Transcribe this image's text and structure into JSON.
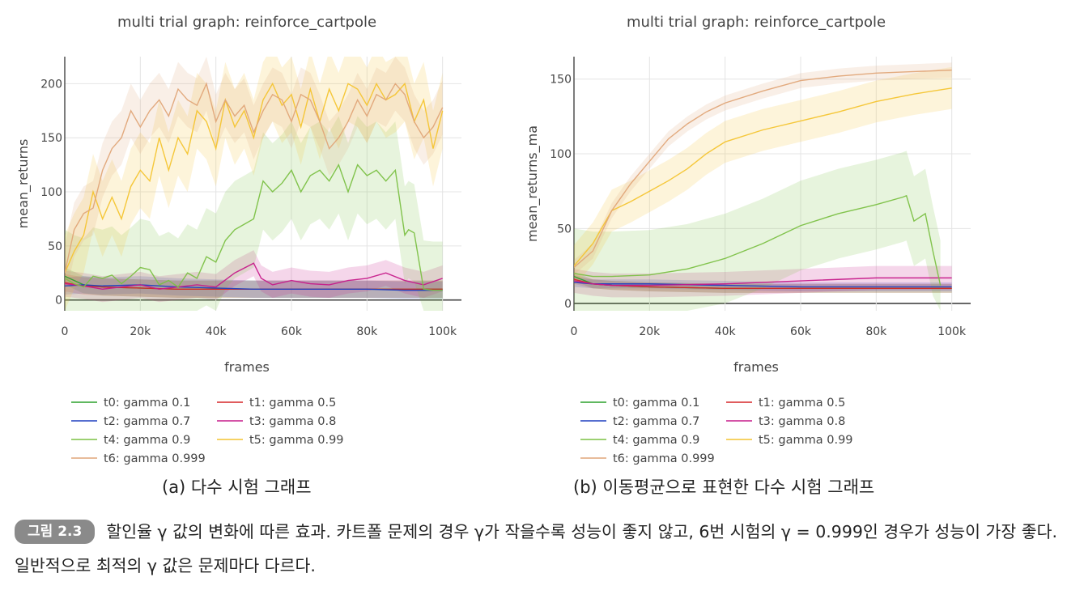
{
  "chart_data": [
    {
      "type": "line",
      "title": "multi trial graph: reinforce_cartpole",
      "xlabel": "frames",
      "ylabel": "mean_returns",
      "xlim": [
        0,
        105000
      ],
      "ylim": [
        -10,
        225
      ],
      "xticks": [
        0,
        20000,
        40000,
        60000,
        80000,
        100000
      ],
      "xtick_labels": [
        "0",
        "20k",
        "40k",
        "60k",
        "80k",
        "100k"
      ],
      "yticks": [
        0,
        50,
        100,
        150,
        200
      ],
      "ytick_labels": [
        "0",
        "50",
        "100",
        "150",
        "200"
      ],
      "grid": true,
      "legend_position": "bottom",
      "series": [
        {
          "name": "t0: gamma 0.1",
          "color": "#2ca02c",
          "band": 8,
          "x": [
            0,
            5000,
            10000,
            20000,
            30000,
            40000,
            50000,
            60000,
            70000,
            80000,
            90000,
            100000
          ],
          "y": [
            22,
            14,
            12,
            11,
            10,
            10,
            10,
            10,
            10,
            10,
            10,
            10
          ]
        },
        {
          "name": "t1: gamma 0.5",
          "color": "#d62728",
          "band": 8,
          "x": [
            0,
            5000,
            10000,
            20000,
            30000,
            40000,
            50000,
            60000,
            70000,
            80000,
            90000,
            100000
          ],
          "y": [
            16,
            13,
            12,
            11,
            10,
            10,
            10,
            10,
            10,
            10,
            10,
            10
          ]
        },
        {
          "name": "t2: gamma 0.7",
          "color": "#1f3fbf",
          "band": 8,
          "x": [
            0,
            5000,
            10000,
            20000,
            30000,
            40000,
            50000,
            60000,
            70000,
            80000,
            90000,
            100000
          ],
          "y": [
            13,
            14,
            13,
            14,
            12,
            11,
            10,
            10,
            10,
            10,
            9,
            9
          ]
        },
        {
          "name": "t3: gamma 0.8",
          "color": "#c61a8a",
          "band": 12,
          "x": [
            0,
            5000,
            10000,
            15000,
            20000,
            25000,
            30000,
            35000,
            40000,
            45000,
            50000,
            52000,
            55000,
            60000,
            65000,
            70000,
            75000,
            80000,
            85000,
            90000,
            95000,
            100000
          ],
          "y": [
            15,
            13,
            10,
            12,
            14,
            10,
            12,
            14,
            12,
            25,
            34,
            20,
            14,
            18,
            15,
            14,
            18,
            20,
            25,
            18,
            14,
            20
          ]
        },
        {
          "name": "t4: gamma 0.9",
          "color": "#7bc043",
          "band": 45,
          "x": [
            0,
            2500,
            5000,
            7500,
            10000,
            12500,
            15000,
            17500,
            20000,
            22500,
            25000,
            27500,
            30000,
            32500,
            35000,
            37500,
            40000,
            42500,
            45000,
            47500,
            50000,
            52500,
            55000,
            57500,
            60000,
            62500,
            65000,
            67500,
            70000,
            72500,
            75000,
            77500,
            80000,
            82500,
            85000,
            87500,
            90000,
            91000,
            92500,
            95000,
            97500,
            100000
          ],
          "y": [
            20,
            15,
            12,
            22,
            20,
            23,
            15,
            22,
            30,
            28,
            14,
            18,
            12,
            25,
            20,
            40,
            35,
            55,
            65,
            70,
            75,
            110,
            100,
            108,
            120,
            100,
            115,
            120,
            110,
            125,
            100,
            125,
            115,
            120,
            110,
            120,
            60,
            65,
            62,
            10,
            9,
            9
          ]
        },
        {
          "name": "t5: gamma 0.99",
          "color": "#f4c430",
          "band": 35,
          "x": [
            0,
            2500,
            5000,
            7500,
            10000,
            12500,
            15000,
            17500,
            20000,
            22500,
            25000,
            27500,
            30000,
            32500,
            35000,
            37500,
            40000,
            42500,
            45000,
            47500,
            50000,
            52500,
            55000,
            57500,
            60000,
            62500,
            65000,
            67500,
            70000,
            72500,
            75000,
            77500,
            80000,
            82500,
            85000,
            87500,
            90000,
            92500,
            95000,
            97500,
            100000
          ],
          "y": [
            25,
            45,
            60,
            100,
            75,
            95,
            75,
            105,
            120,
            110,
            150,
            120,
            150,
            135,
            175,
            165,
            140,
            185,
            160,
            175,
            150,
            185,
            200,
            180,
            190,
            160,
            195,
            165,
            195,
            175,
            200,
            195,
            180,
            200,
            185,
            190,
            200,
            165,
            185,
            140,
            175
          ]
        },
        {
          "name": "t6: gamma 0.999",
          "color": "#e0a578",
          "band": 25,
          "x": [
            0,
            2500,
            5000,
            7500,
            10000,
            12500,
            15000,
            17500,
            20000,
            22500,
            25000,
            27500,
            30000,
            32500,
            35000,
            37500,
            40000,
            42500,
            45000,
            47500,
            50000,
            52500,
            55000,
            57500,
            60000,
            62500,
            65000,
            67500,
            70000,
            72500,
            75000,
            77500,
            80000,
            82500,
            85000,
            87500,
            90000,
            92500,
            95000,
            97500,
            100000
          ],
          "y": [
            25,
            65,
            80,
            85,
            120,
            140,
            150,
            175,
            160,
            175,
            185,
            170,
            195,
            185,
            180,
            200,
            165,
            185,
            170,
            180,
            155,
            175,
            190,
            185,
            165,
            190,
            185,
            165,
            140,
            150,
            165,
            185,
            170,
            190,
            185,
            200,
            190,
            165,
            150,
            160,
            178
          ]
        }
      ]
    },
    {
      "type": "line",
      "title": "multi trial graph: reinforce_cartpole",
      "xlabel": "frames",
      "ylabel": "mean_returns_ma",
      "xlim": [
        0,
        105000
      ],
      "ylim": [
        -5,
        165
      ],
      "xticks": [
        0,
        20000,
        40000,
        60000,
        80000,
        100000
      ],
      "xtick_labels": [
        "0",
        "20k",
        "40k",
        "60k",
        "80k",
        "100k"
      ],
      "yticks": [
        0,
        50,
        100,
        150
      ],
      "ytick_labels": [
        "0",
        "50",
        "100",
        "150"
      ],
      "grid": true,
      "legend_position": "bottom",
      "series": [
        {
          "name": "t0: gamma 0.1",
          "color": "#2ca02c",
          "band": 3,
          "x": [
            0,
            5000,
            10000,
            20000,
            40000,
            60000,
            80000,
            100000
          ],
          "y": [
            18,
            13,
            12,
            11,
            10,
            10,
            10,
            10
          ]
        },
        {
          "name": "t1: gamma 0.5",
          "color": "#d62728",
          "band": 3,
          "x": [
            0,
            5000,
            10000,
            20000,
            40000,
            60000,
            80000,
            100000
          ],
          "y": [
            16,
            13,
            12,
            11,
            10,
            10,
            10,
            10
          ]
        },
        {
          "name": "t2: gamma 0.7",
          "color": "#1f3fbf",
          "band": 3,
          "x": [
            0,
            5000,
            10000,
            20000,
            40000,
            60000,
            80000,
            100000
          ],
          "y": [
            14,
            13,
            13,
            13,
            12,
            11,
            11,
            11
          ]
        },
        {
          "name": "t3: gamma 0.8",
          "color": "#c61a8a",
          "band": 8,
          "x": [
            0,
            5000,
            10000,
            20000,
            40000,
            60000,
            80000,
            100000
          ],
          "y": [
            15,
            13,
            12,
            12,
            13,
            15,
            17,
            17
          ]
        },
        {
          "name": "t4: gamma 0.9",
          "color": "#7bc043",
          "band": 30,
          "x": [
            0,
            5000,
            10000,
            20000,
            30000,
            40000,
            50000,
            60000,
            70000,
            80000,
            87000,
            88000,
            90000,
            93000,
            95000,
            97000
          ],
          "y": [
            20,
            18,
            18,
            19,
            23,
            30,
            40,
            52,
            60,
            66,
            71,
            72,
            55,
            60,
            35,
            12
          ]
        },
        {
          "name": "t5: gamma 0.99",
          "color": "#f4c430",
          "band": 14,
          "x": [
            0,
            5000,
            10000,
            15000,
            20000,
            25000,
            30000,
            35000,
            40000,
            50000,
            60000,
            70000,
            80000,
            90000,
            100000
          ],
          "y": [
            25,
            40,
            62,
            68,
            75,
            82,
            90,
            100,
            108,
            116,
            122,
            128,
            135,
            140,
            144
          ]
        },
        {
          "name": "t6: gamma 0.999",
          "color": "#e0a578",
          "band": 5,
          "x": [
            0,
            5000,
            10000,
            15000,
            20000,
            25000,
            30000,
            35000,
            40000,
            50000,
            60000,
            70000,
            80000,
            90000,
            100000
          ],
          "y": [
            24,
            35,
            62,
            80,
            95,
            110,
            120,
            128,
            134,
            142,
            149,
            152,
            154,
            155,
            156
          ]
        }
      ]
    }
  ],
  "captions": {
    "a": "(a) 다수 시험 그래프",
    "b": "(b) 이동평균으로 표현한 다수 시험 그래프"
  },
  "figure_note": {
    "badge": "그림 2.3",
    "text": "할인율 γ 값의 변화에 따른 효과. 카트폴 문제의 경우 γ가 작을수록 성능이 좋지 않고, 6번 시험의 γ = 0.999인 경우가 성능이 가장 좋다. 일반적으로 최적의 γ 값은 문제마다 다르다."
  }
}
